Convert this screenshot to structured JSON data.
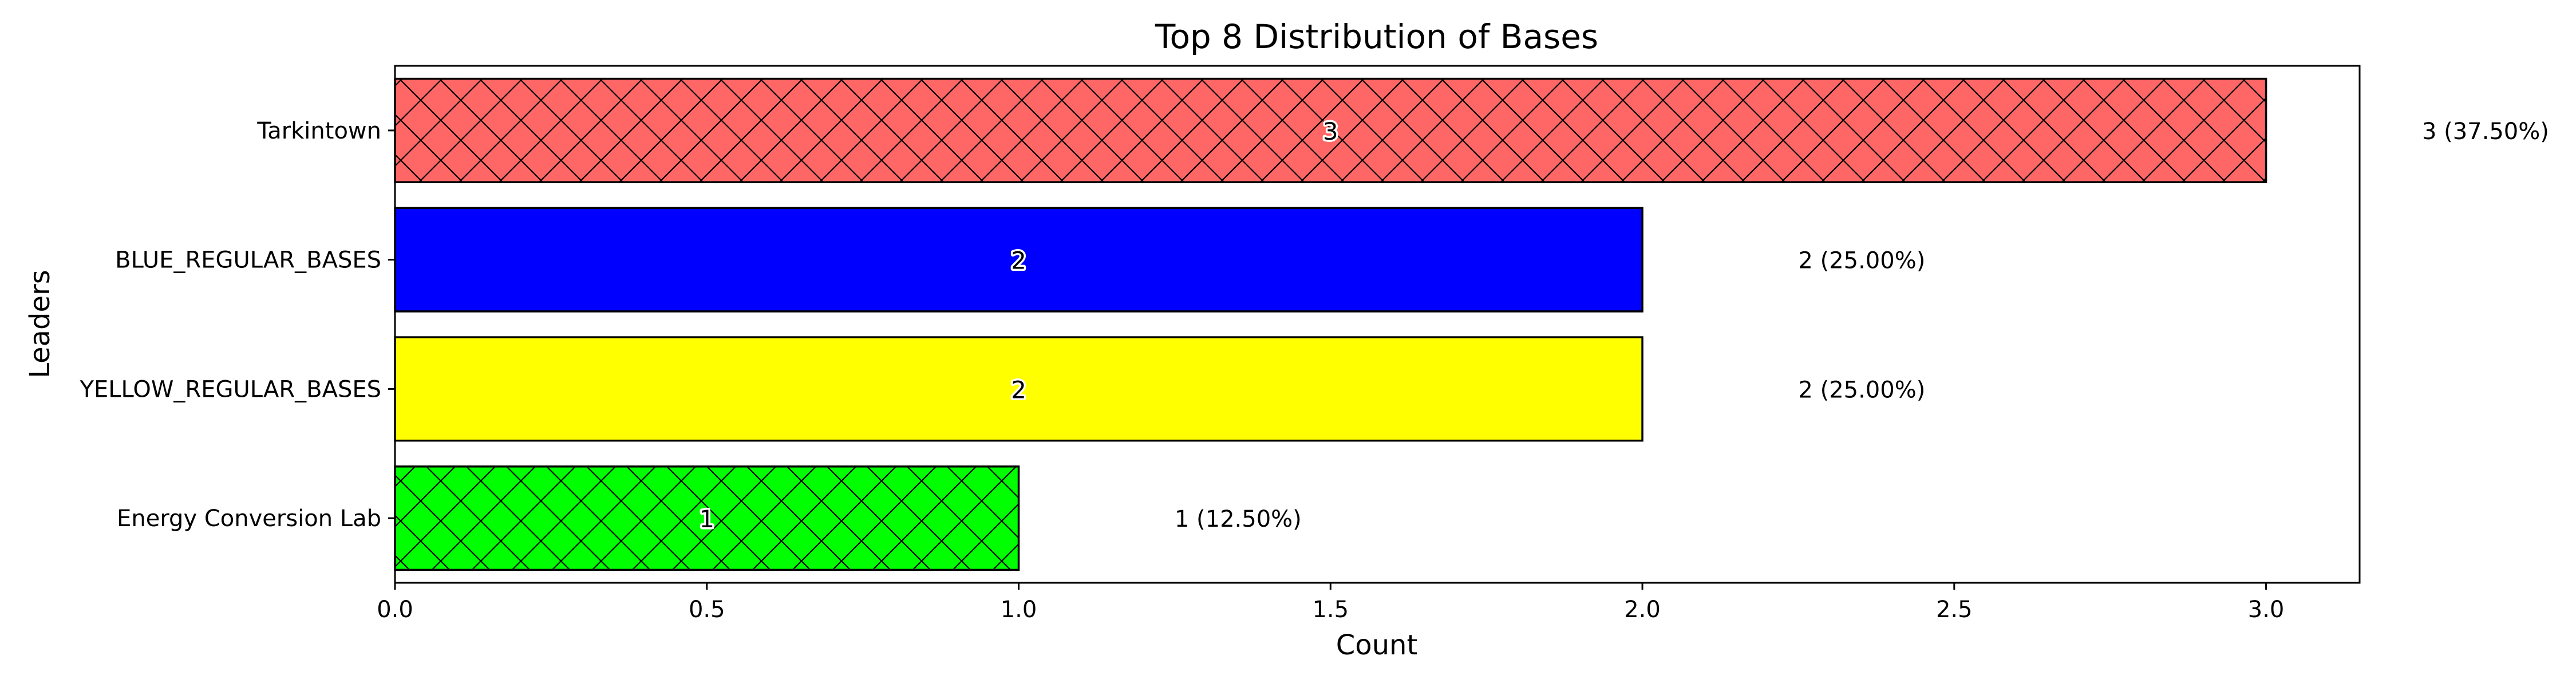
{
  "chart_data": {
    "type": "bar",
    "orientation": "horizontal",
    "title": "Top 8 Distribution of Bases",
    "xlabel": "Count",
    "ylabel": "Leaders",
    "xlim": [
      0,
      3.15
    ],
    "xticks": [
      "0.0",
      "0.5",
      "1.0",
      "1.5",
      "2.0",
      "2.5",
      "3.0"
    ],
    "grid": false,
    "categories": [
      "Tarkintown",
      "BLUE_REGULAR_BASES",
      "YELLOW_REGULAR_BASES",
      "Energy Conversion Lab"
    ],
    "values": [
      3,
      2,
      2,
      1
    ],
    "inner_labels": [
      "3",
      "2",
      "2",
      "1"
    ],
    "outer_labels": [
      "3 (37.50%)",
      "2 (25.00%)",
      "2 (25.00%)",
      "1 (12.50%)"
    ],
    "colors": [
      "#ff6666",
      "#0000ff",
      "#ffff00",
      "#00ff00"
    ],
    "hatched": [
      true,
      false,
      false,
      true
    ]
  }
}
